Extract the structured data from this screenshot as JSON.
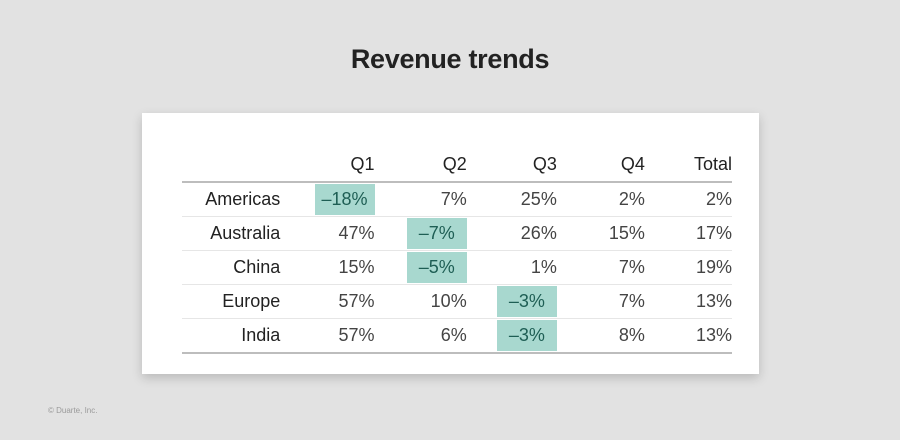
{
  "title": "Revenue trends",
  "copyright": "© Duarte, Inc.",
  "colors": {
    "background": "#e2e2e2",
    "card": "#ffffff",
    "highlight_fill": "#a8d8cf",
    "highlight_text": "#1e5e54"
  },
  "table": {
    "headers": [
      "",
      "Q1",
      "Q2",
      "Q3",
      "Q4",
      "Total"
    ],
    "rows": [
      {
        "region": "Americas",
        "values": [
          "–18%",
          "7%",
          "25%",
          "2%",
          "2%"
        ],
        "highlight": [
          true,
          false,
          false,
          false,
          false
        ]
      },
      {
        "region": "Australia",
        "values": [
          "47%",
          "–7%",
          "26%",
          "15%",
          "17%"
        ],
        "highlight": [
          false,
          true,
          false,
          false,
          false
        ]
      },
      {
        "region": "China",
        "values": [
          "15%",
          "–5%",
          "1%",
          "7%",
          "19%"
        ],
        "highlight": [
          false,
          true,
          false,
          false,
          false
        ]
      },
      {
        "region": "Europe",
        "values": [
          "57%",
          "10%",
          "–3%",
          "7%",
          "13%"
        ],
        "highlight": [
          false,
          false,
          true,
          false,
          false
        ]
      },
      {
        "region": "India",
        "values": [
          "57%",
          "6%",
          "–3%",
          "8%",
          "13%"
        ],
        "highlight": [
          false,
          false,
          true,
          false,
          false
        ]
      }
    ]
  },
  "chart_data": {
    "type": "table",
    "title": "Revenue trends",
    "categories": [
      "Q1",
      "Q2",
      "Q3",
      "Q4",
      "Total"
    ],
    "series": [
      {
        "name": "Americas",
        "values": [
          -18,
          7,
          25,
          2,
          2
        ]
      },
      {
        "name": "Australia",
        "values": [
          47,
          -7,
          26,
          15,
          17
        ]
      },
      {
        "name": "China",
        "values": [
          15,
          -5,
          1,
          7,
          19
        ]
      },
      {
        "name": "Europe",
        "values": [
          57,
          10,
          -3,
          7,
          13
        ]
      },
      {
        "name": "India",
        "values": [
          57,
          6,
          -3,
          8,
          13
        ]
      }
    ],
    "unit": "%",
    "annotations": "Negative values highlighted with teal fill"
  }
}
